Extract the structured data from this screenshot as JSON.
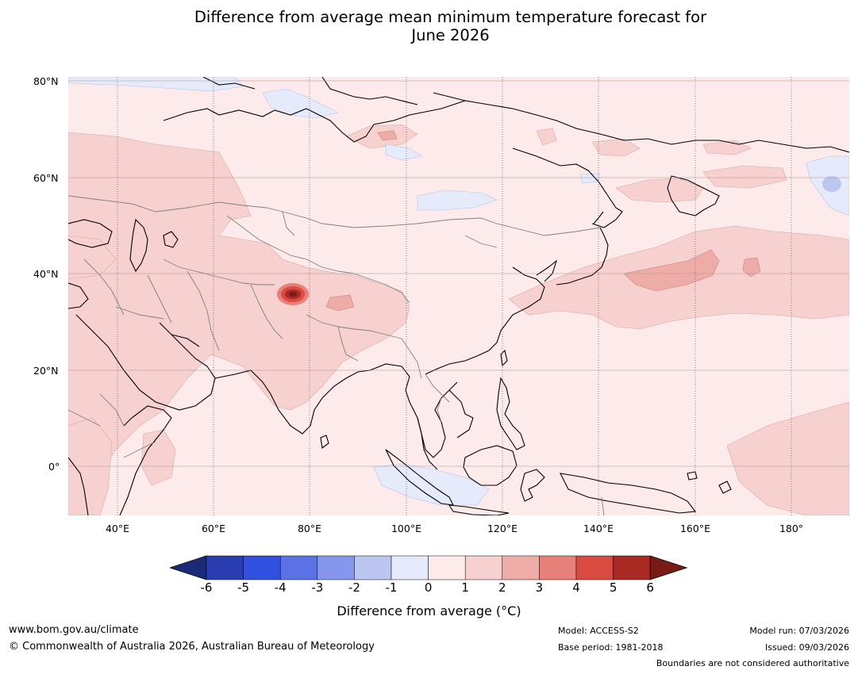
{
  "title_line1": "Difference from average mean minimum temperature forecast for",
  "title_line2": "June 2026",
  "map": {
    "latitude_labels": [
      "80°N",
      "60°N",
      "40°N",
      "20°N",
      "0°"
    ],
    "longitude_labels": [
      "40°E",
      "60°E",
      "80°E",
      "100°E",
      "120°E",
      "140°E",
      "160°E",
      "180°"
    ]
  },
  "colorbar": {
    "ticks": [
      "-6",
      "-5",
      "-4",
      "-3",
      "-2",
      "-1",
      "0",
      "1",
      "2",
      "3",
      "4",
      "5",
      "6"
    ],
    "colors": {
      "below_min": "#1a2a78",
      "bins": [
        "#2a3db0",
        "#3050e0",
        "#5a72e6",
        "#8497ec",
        "#bcc6f3",
        "#e6ebfb",
        "#fcebea",
        "#f6d1cf",
        "#eeaca7",
        "#e68078",
        "#d94a40",
        "#a82a22"
      ],
      "above_max": "#7a1a14"
    },
    "label": "Difference from average (°C)"
  },
  "footer": {
    "website": "www.bom.gov.au/climate",
    "copyright": "© Commonwealth of Australia 2026, Australian Bureau of Meteorology",
    "model": "Model: ACCESS-S2",
    "base_period": "Base period: 1981-2018",
    "model_run": "Model run: 07/03/2026",
    "issued": "Issued: 09/03/2026",
    "disclaimer": "Boundaries are not considered authoritative"
  }
}
